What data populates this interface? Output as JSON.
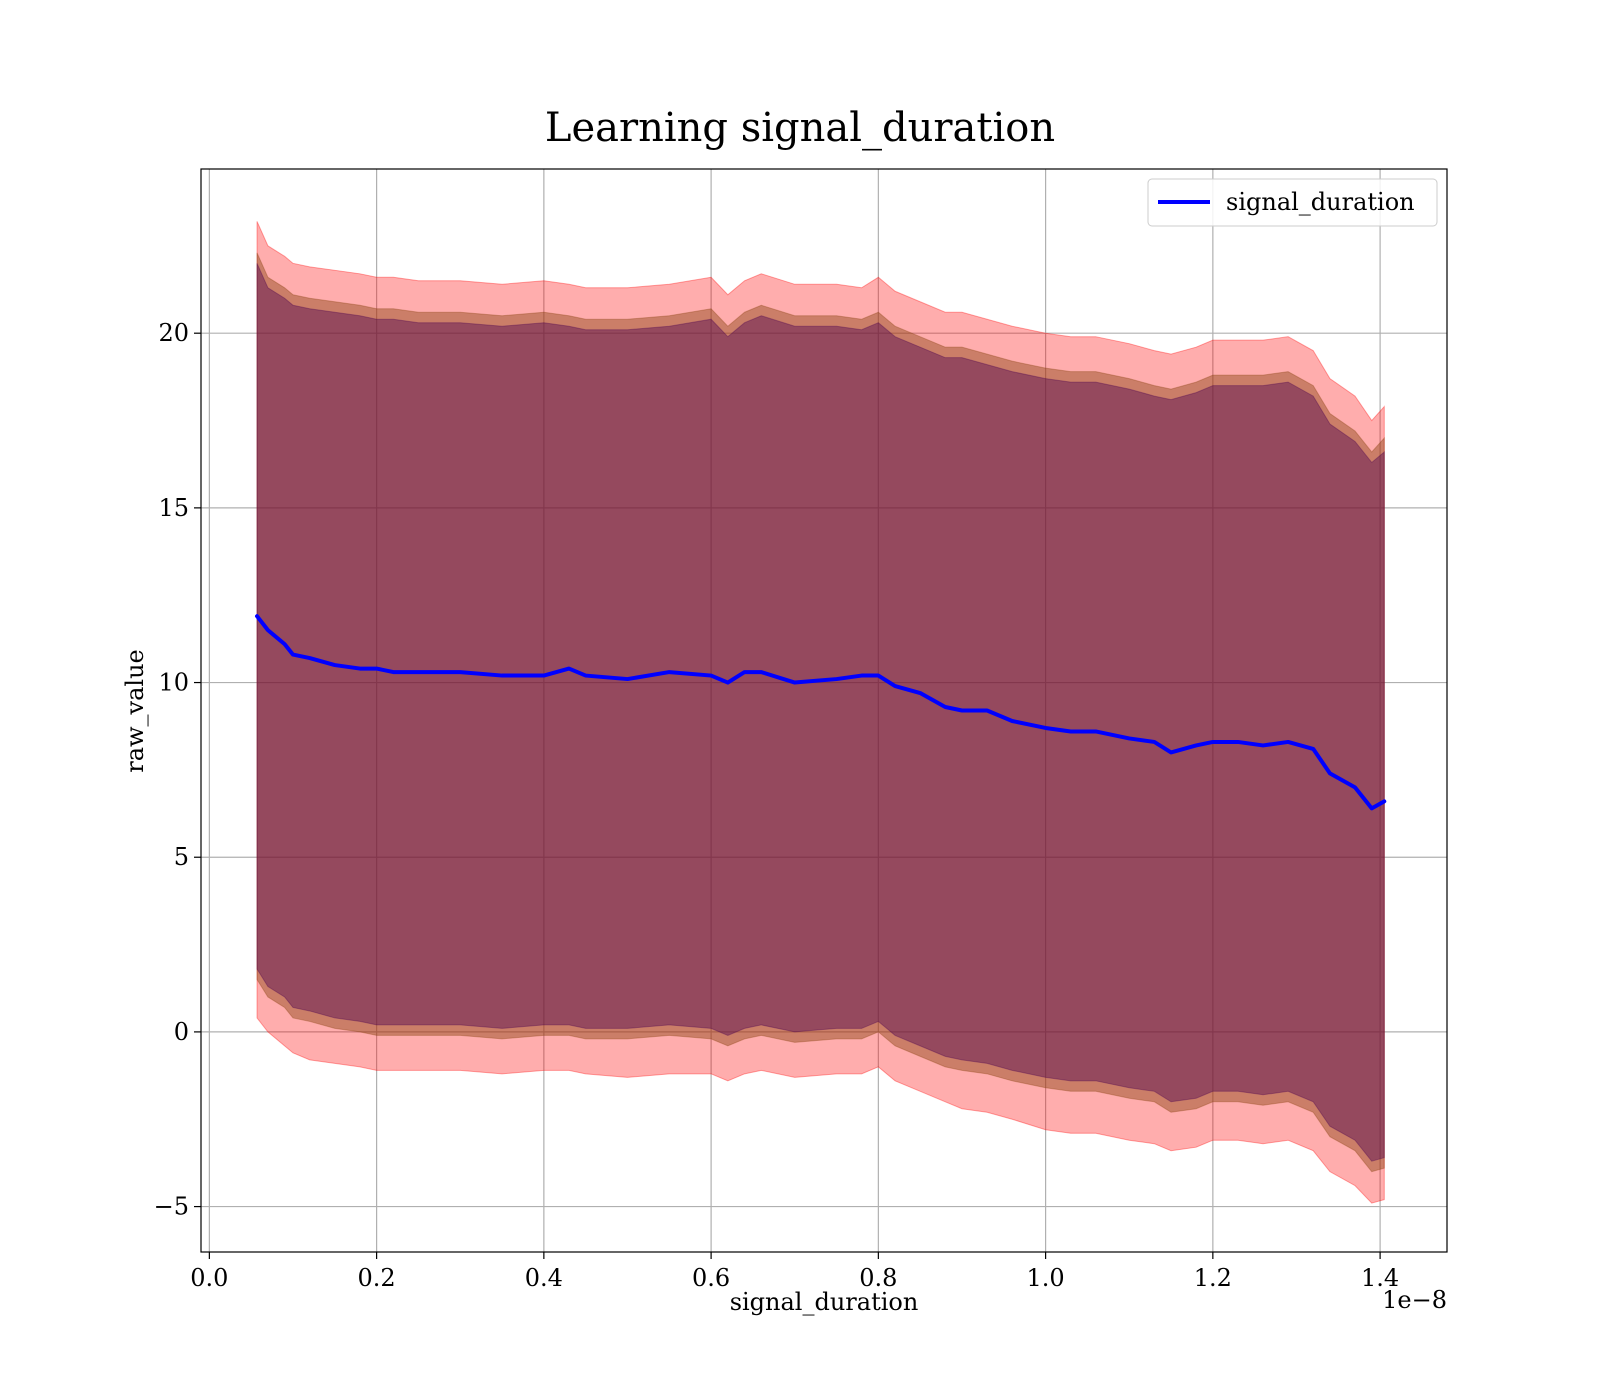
{
  "chart_data": {
    "type": "area",
    "title": "Learning signal_duration",
    "xlabel": "signal_duration",
    "ylabel": "raw_value",
    "x_offset_label": "1e−8",
    "x_scale_factor": 1e-08,
    "xlim": [
      -0.01,
      1.48
    ],
    "ylim": [
      -6.3,
      24.7
    ],
    "x_ticks": [
      0.0,
      0.2,
      0.4,
      0.6,
      0.8,
      1.0,
      1.2,
      1.4
    ],
    "x_tick_labels": [
      "0.0",
      "0.2",
      "0.4",
      "0.6",
      "0.8",
      "1.0",
      "1.2",
      "1.4"
    ],
    "y_ticks": [
      -5,
      0,
      5,
      10,
      15,
      20
    ],
    "y_tick_labels": [
      "−5",
      "0",
      "5",
      "10",
      "15",
      "20"
    ],
    "grid": true,
    "legend": {
      "placement": "top-right",
      "entries": [
        "signal_duration"
      ]
    },
    "colors": {
      "line": "#0000ff",
      "band_outer": "#ff0000",
      "band_middle": "#8b4513",
      "band_inner": "#4b0050",
      "grid": "#b0b0b0"
    },
    "x": [
      0.057,
      0.07,
      0.09,
      0.1,
      0.12,
      0.15,
      0.18,
      0.2,
      0.22,
      0.25,
      0.3,
      0.35,
      0.4,
      0.43,
      0.45,
      0.5,
      0.55,
      0.6,
      0.62,
      0.64,
      0.66,
      0.7,
      0.75,
      0.78,
      0.8,
      0.82,
      0.85,
      0.88,
      0.9,
      0.93,
      0.96,
      1.0,
      1.03,
      1.06,
      1.1,
      1.13,
      1.15,
      1.18,
      1.2,
      1.23,
      1.26,
      1.29,
      1.32,
      1.34,
      1.37,
      1.39,
      1.405
    ],
    "series": [
      {
        "name": "signal_duration",
        "values": [
          11.9,
          11.5,
          11.1,
          10.8,
          10.7,
          10.5,
          10.4,
          10.4,
          10.3,
          10.3,
          10.3,
          10.2,
          10.2,
          10.4,
          10.2,
          10.1,
          10.3,
          10.2,
          10.0,
          10.3,
          10.3,
          10.0,
          10.1,
          10.2,
          10.2,
          9.9,
          9.7,
          9.3,
          9.2,
          9.2,
          8.9,
          8.7,
          8.6,
          8.6,
          8.4,
          8.3,
          8.0,
          8.2,
          8.3,
          8.3,
          8.2,
          8.3,
          8.1,
          7.4,
          7.0,
          6.4,
          6.6
        ]
      }
    ],
    "bands": [
      {
        "upper": [
          23.2,
          22.5,
          22.2,
          22.0,
          21.9,
          21.8,
          21.7,
          21.6,
          21.6,
          21.5,
          21.5,
          21.4,
          21.5,
          21.4,
          21.3,
          21.3,
          21.4,
          21.6,
          21.1,
          21.5,
          21.7,
          21.4,
          21.4,
          21.3,
          21.6,
          21.2,
          20.9,
          20.6,
          20.6,
          20.4,
          20.2,
          20.0,
          19.9,
          19.9,
          19.7,
          19.5,
          19.4,
          19.6,
          19.8,
          19.8,
          19.8,
          19.9,
          19.5,
          18.7,
          18.2,
          17.5,
          17.9
        ],
        "lower": [
          0.4,
          0.0,
          -0.4,
          -0.6,
          -0.8,
          -0.9,
          -1.0,
          -1.1,
          -1.1,
          -1.1,
          -1.1,
          -1.2,
          -1.1,
          -1.1,
          -1.2,
          -1.3,
          -1.2,
          -1.2,
          -1.4,
          -1.2,
          -1.1,
          -1.3,
          -1.2,
          -1.2,
          -1.0,
          -1.4,
          -1.7,
          -2.0,
          -2.2,
          -2.3,
          -2.5,
          -2.8,
          -2.9,
          -2.9,
          -3.1,
          -3.2,
          -3.4,
          -3.3,
          -3.1,
          -3.1,
          -3.2,
          -3.1,
          -3.4,
          -4.0,
          -4.4,
          -4.9,
          -4.8
        ]
      },
      {
        "upper": [
          22.3,
          21.6,
          21.3,
          21.1,
          21.0,
          20.9,
          20.8,
          20.7,
          20.7,
          20.6,
          20.6,
          20.5,
          20.6,
          20.5,
          20.4,
          20.4,
          20.5,
          20.7,
          20.2,
          20.6,
          20.8,
          20.5,
          20.5,
          20.4,
          20.6,
          20.2,
          19.9,
          19.6,
          19.6,
          19.4,
          19.2,
          19.0,
          18.9,
          18.9,
          18.7,
          18.5,
          18.4,
          18.6,
          18.8,
          18.8,
          18.8,
          18.9,
          18.5,
          17.7,
          17.2,
          16.6,
          17.0
        ],
        "lower": [
          1.5,
          1.0,
          0.7,
          0.4,
          0.3,
          0.1,
          0.0,
          -0.1,
          -0.1,
          -0.1,
          -0.1,
          -0.2,
          -0.1,
          -0.1,
          -0.2,
          -0.2,
          -0.1,
          -0.2,
          -0.4,
          -0.2,
          -0.1,
          -0.3,
          -0.2,
          -0.2,
          0.0,
          -0.4,
          -0.7,
          -1.0,
          -1.1,
          -1.2,
          -1.4,
          -1.6,
          -1.7,
          -1.7,
          -1.9,
          -2.0,
          -2.3,
          -2.2,
          -2.0,
          -2.0,
          -2.1,
          -2.0,
          -2.3,
          -3.0,
          -3.4,
          -4.0,
          -3.9
        ]
      },
      {
        "upper": [
          22.0,
          21.3,
          21.0,
          20.8,
          20.7,
          20.6,
          20.5,
          20.4,
          20.4,
          20.3,
          20.3,
          20.2,
          20.3,
          20.2,
          20.1,
          20.1,
          20.2,
          20.4,
          19.9,
          20.3,
          20.5,
          20.2,
          20.2,
          20.1,
          20.3,
          19.9,
          19.6,
          19.3,
          19.3,
          19.1,
          18.9,
          18.7,
          18.6,
          18.6,
          18.4,
          18.2,
          18.1,
          18.3,
          18.5,
          18.5,
          18.5,
          18.6,
          18.2,
          17.4,
          16.9,
          16.3,
          16.6
        ],
        "lower": [
          1.8,
          1.3,
          1.0,
          0.7,
          0.6,
          0.4,
          0.3,
          0.2,
          0.2,
          0.2,
          0.2,
          0.1,
          0.2,
          0.2,
          0.1,
          0.1,
          0.2,
          0.1,
          -0.1,
          0.1,
          0.2,
          0.0,
          0.1,
          0.1,
          0.3,
          -0.1,
          -0.4,
          -0.7,
          -0.8,
          -0.9,
          -1.1,
          -1.3,
          -1.4,
          -1.4,
          -1.6,
          -1.7,
          -2.0,
          -1.9,
          -1.7,
          -1.7,
          -1.8,
          -1.7,
          -2.0,
          -2.7,
          -3.1,
          -3.7,
          -3.6
        ]
      }
    ]
  }
}
